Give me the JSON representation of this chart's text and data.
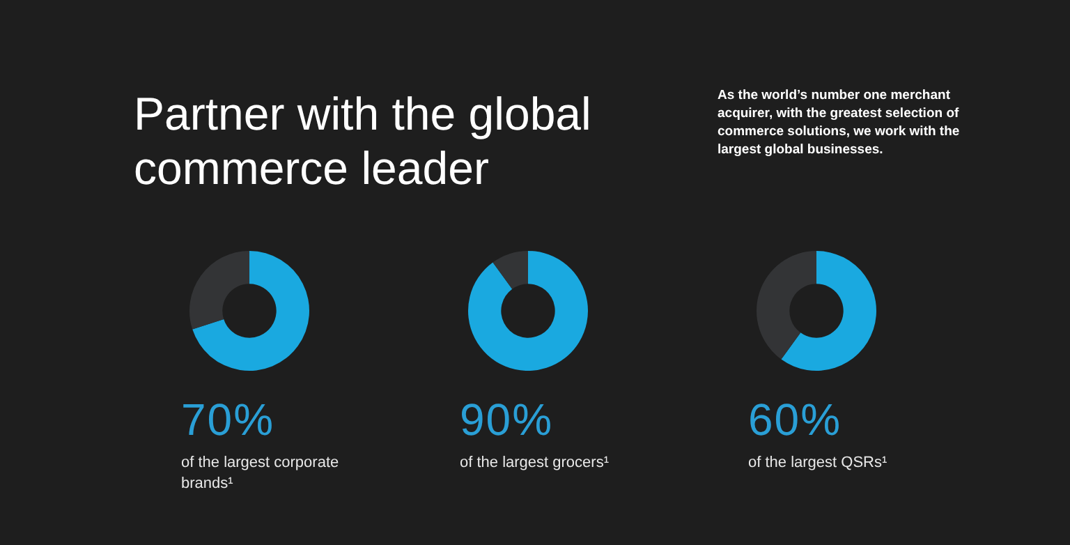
{
  "chart_data": [
    {
      "type": "other",
      "title": "Partner with the global commerce leader",
      "annotations": [
        "As the world’s number one merchant acquirer, with the greatest selection of commerce solutions, we work with the largest global businesses."
      ]
    },
    {
      "type": "donut",
      "categories": [
        null,
        null
      ],
      "values": [
        70,
        30
      ],
      "colors": [
        "#1aa9e0",
        "#333436"
      ],
      "value_labels": [
        "70%",
        null
      ],
      "annotations": [
        "of the largest corporate brands¹"
      ]
    },
    {
      "type": "donut",
      "categories": [
        null,
        null
      ],
      "values": [
        90,
        10
      ],
      "colors": [
        "#1aa9e0",
        "#333436"
      ],
      "value_labels": [
        "90%",
        null
      ],
      "annotations": [
        "of the largest grocers¹"
      ]
    },
    {
      "type": "donut",
      "categories": [
        null,
        null
      ],
      "values": [
        60,
        40
      ],
      "colors": [
        "#1aa9e0",
        "#333436"
      ],
      "value_labels": [
        "60%",
        null
      ],
      "annotations": [
        "of the largest QSRs¹"
      ]
    }
  ]
}
